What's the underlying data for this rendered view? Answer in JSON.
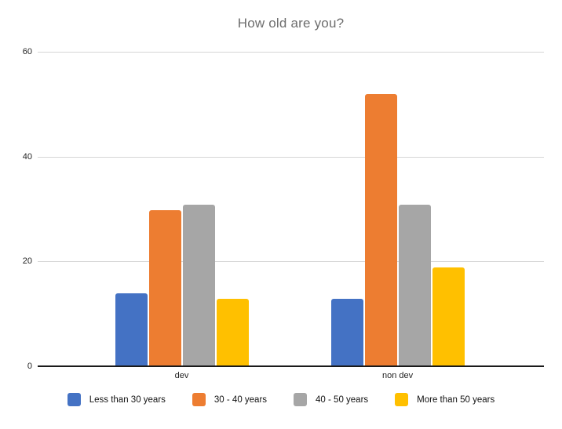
{
  "chart_data": {
    "type": "bar",
    "title": "How old are you?",
    "categories": [
      "dev",
      "non dev"
    ],
    "series": [
      {
        "name": "Less than 30 years",
        "color": "#4472C4",
        "values": [
          14,
          13
        ]
      },
      {
        "name": "30 - 40 years",
        "color": "#ED7D31",
        "values": [
          30,
          52
        ]
      },
      {
        "name": "40 - 50 years",
        "color": "#A6A6A6",
        "values": [
          31,
          31
        ]
      },
      {
        "name": "More than 50 years",
        "color": "#FFC000",
        "values": [
          13,
          19
        ]
      }
    ],
    "xlabel": "",
    "ylabel": "",
    "ylim": [
      0,
      60
    ],
    "yticks": [
      0,
      20,
      40,
      60
    ],
    "grid": "horizontal",
    "legend_position": "bottom",
    "category_centers_pct": [
      28.45,
      71.1
    ]
  },
  "colors": {
    "title_text": "#6d6d6d",
    "gridline": "#d6d6d6",
    "axis_line": "#1a1a1a",
    "tick_label": "#1f1f1f",
    "background": "#ffffff"
  }
}
